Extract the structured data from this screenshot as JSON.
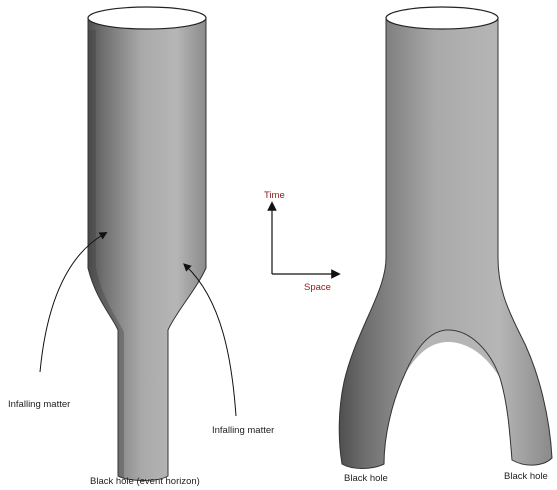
{
  "colors": {
    "tube_dark": "#5a5a5a",
    "tube_mid": "#9a9a9a",
    "tube_light": "#c8c8c8",
    "axis_label": "#8b1a1a",
    "ink": "#111111"
  },
  "left_diagram": {
    "label_infalling_left": "Infalling matter",
    "label_infalling_right": "Infalling matter",
    "label_black_hole": "Black hole (event horizon)"
  },
  "axes": {
    "time_label": "Time",
    "space_label": "Space"
  },
  "right_diagram": {
    "label_black_hole_left": "Black hole",
    "label_black_hole_right": "Black hole"
  }
}
